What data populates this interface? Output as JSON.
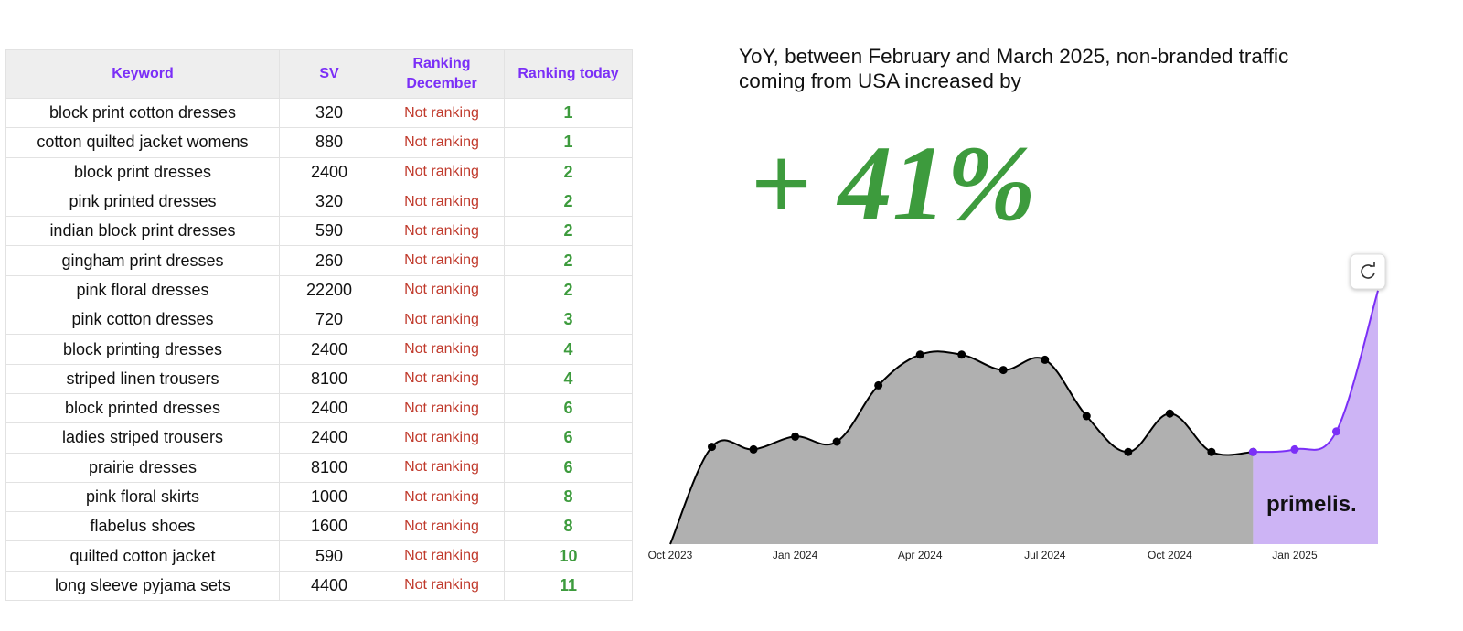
{
  "table": {
    "headers": [
      "Keyword",
      "SV",
      "Ranking December",
      "Ranking today"
    ],
    "rows": [
      [
        "block print cotton dresses",
        320,
        "Not ranking",
        1
      ],
      [
        "cotton quilted jacket womens",
        880,
        "Not ranking",
        1
      ],
      [
        "block print dresses",
        2400,
        "Not ranking",
        2
      ],
      [
        "pink printed dresses",
        320,
        "Not ranking",
        2
      ],
      [
        "indian block print dresses",
        590,
        "Not ranking",
        2
      ],
      [
        "gingham print dresses",
        260,
        "Not ranking",
        2
      ],
      [
        "pink floral dresses",
        22200,
        "Not ranking",
        2
      ],
      [
        "pink cotton dresses",
        720,
        "Not ranking",
        3
      ],
      [
        "block printing dresses",
        2400,
        "Not ranking",
        4
      ],
      [
        "striped linen trousers",
        8100,
        "Not ranking",
        4
      ],
      [
        "block printed dresses",
        2400,
        "Not ranking",
        6
      ],
      [
        "ladies striped trousers",
        2400,
        "Not ranking",
        6
      ],
      [
        "prairie dresses",
        8100,
        "Not ranking",
        6
      ],
      [
        "pink floral skirts",
        1000,
        "Not ranking",
        8
      ],
      [
        "flabelus shoes",
        1600,
        "Not ranking",
        8
      ],
      [
        "quilted cotton jacket",
        590,
        "Not ranking",
        10
      ],
      [
        "long sleeve pyjama sets",
        4400,
        "Not ranking",
        11
      ]
    ]
  },
  "headline": "YoY, between February and March 2025, non-branded traffic coming from USA increased by",
  "big_number": "+ 41%",
  "watermark": "primelis.",
  "chart_data": {
    "type": "area",
    "categories": [
      "Oct 2023",
      null,
      null,
      "Jan 2024",
      null,
      null,
      "Apr 2024",
      null,
      null,
      "Jul 2024",
      null,
      null,
      "Oct 2024",
      null,
      null,
      "Jan 2025",
      null,
      null
    ],
    "series": [
      {
        "color": "#000000",
        "fill": "#b0b0b0",
        "values": [
          0,
          38,
          37,
          42,
          40,
          62,
          74,
          74,
          68,
          72,
          50,
          36,
          51,
          36,
          36,
          null,
          null,
          null
        ]
      },
      {
        "color": "#7b2ff7",
        "fill": "#cdb4f5",
        "values": [
          null,
          null,
          null,
          null,
          null,
          null,
          null,
          null,
          null,
          null,
          null,
          null,
          null,
          null,
          36,
          37,
          44,
          99
        ]
      }
    ],
    "ylim": [
      0,
      100
    ]
  }
}
